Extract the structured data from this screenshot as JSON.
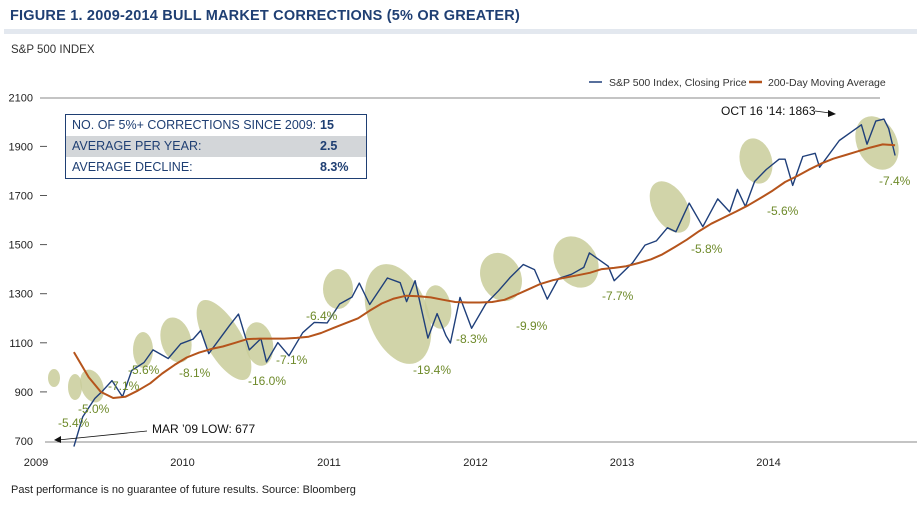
{
  "title": "FIGURE 1. 2009-2014 BULL MARKET CORRECTIONS (5% OR GREATER)",
  "subtitle": "S&P 500 INDEX",
  "footnote": "Past performance is no guarantee of future results. Source: Bloomberg",
  "info_box": [
    {
      "label": "NO. OF 5%+ CORRECTIONS SINCE 2009:",
      "value": "15"
    },
    {
      "label": "AVERAGE PER YEAR:",
      "value": "2.5"
    },
    {
      "label": "AVERAGE DECLINE:",
      "value": "8.3%"
    }
  ],
  "chart_data": {
    "type": "line",
    "title": "FIGURE 1. 2009-2014 BULL MARKET CORRECTIONS (5% OR GREATER)",
    "ylabel": "S&P 500 INDEX",
    "ylim": [
      700,
      2100
    ],
    "yticks": [
      "700",
      "900",
      "1100",
      "1300",
      "1500",
      "1700",
      "1900",
      "2100"
    ],
    "xticks": [
      "2009",
      "2010",
      "2011",
      "2012",
      "2013",
      "2014"
    ],
    "legend_position": "top-right",
    "grid": false,
    "colors": {
      "price": "#1f3f7a",
      "ma": "#b5541c",
      "highlight": "#c9cc9a",
      "correction_label": "#6e8a2a"
    },
    "series": [
      {
        "name": "S&P 500 Index, Closing Price",
        "points": [
          [
            "2009-03-09",
            677
          ],
          [
            "2009-03-31",
            798
          ],
          [
            "2009-04-30",
            873
          ],
          [
            "2009-05-20",
            905
          ],
          [
            "2009-06-12",
            946
          ],
          [
            "2009-07-08",
            880
          ],
          [
            "2009-07-31",
            987
          ],
          [
            "2009-08-31",
            1020
          ],
          [
            "2009-09-22",
            1071
          ],
          [
            "2009-10-30",
            1036
          ],
          [
            "2009-11-30",
            1096
          ],
          [
            "2009-12-31",
            1115
          ],
          [
            "2010-01-19",
            1150
          ],
          [
            "2010-02-08",
            1056
          ],
          [
            "2010-03-31",
            1169
          ],
          [
            "2010-04-23",
            1217
          ],
          [
            "2010-05-20",
            1071
          ],
          [
            "2010-06-18",
            1117
          ],
          [
            "2010-07-02",
            1022
          ],
          [
            "2010-07-30",
            1101
          ],
          [
            "2010-08-27",
            1047
          ],
          [
            "2010-09-30",
            1141
          ],
          [
            "2010-10-29",
            1183
          ],
          [
            "2010-11-30",
            1181
          ],
          [
            "2010-12-31",
            1258
          ],
          [
            "2011-01-31",
            1286
          ],
          [
            "2011-02-18",
            1343
          ],
          [
            "2011-03-16",
            1256
          ],
          [
            "2011-04-29",
            1364
          ],
          [
            "2011-05-31",
            1345
          ],
          [
            "2011-06-16",
            1268
          ],
          [
            "2011-07-07",
            1353
          ],
          [
            "2011-08-08",
            1119
          ],
          [
            "2011-08-31",
            1219
          ],
          [
            "2011-09-22",
            1129
          ],
          [
            "2011-10-03",
            1099
          ],
          [
            "2011-10-27",
            1285
          ],
          [
            "2011-11-25",
            1159
          ],
          [
            "2011-12-30",
            1258
          ],
          [
            "2012-01-31",
            1312
          ],
          [
            "2012-02-29",
            1366
          ],
          [
            "2012-04-02",
            1419
          ],
          [
            "2012-04-30",
            1398
          ],
          [
            "2012-06-01",
            1278
          ],
          [
            "2012-06-29",
            1362
          ],
          [
            "2012-07-31",
            1379
          ],
          [
            "2012-08-31",
            1407
          ],
          [
            "2012-09-14",
            1466
          ],
          [
            "2012-10-31",
            1412
          ],
          [
            "2012-11-15",
            1353
          ],
          [
            "2012-12-31",
            1426
          ],
          [
            "2013-01-31",
            1498
          ],
          [
            "2013-02-28",
            1515
          ],
          [
            "2013-03-28",
            1569
          ],
          [
            "2013-04-18",
            1552
          ],
          [
            "2013-05-21",
            1669
          ],
          [
            "2013-06-24",
            1573
          ],
          [
            "2013-07-31",
            1686
          ],
          [
            "2013-08-30",
            1633
          ],
          [
            "2013-09-18",
            1725
          ],
          [
            "2013-10-08",
            1655
          ],
          [
            "2013-10-31",
            1757
          ],
          [
            "2013-11-29",
            1806
          ],
          [
            "2013-12-31",
            1848
          ],
          [
            "2014-01-15",
            1848
          ],
          [
            "2014-02-03",
            1741
          ],
          [
            "2014-02-28",
            1859
          ],
          [
            "2014-03-31",
            1872
          ],
          [
            "2014-04-11",
            1815
          ],
          [
            "2014-05-30",
            1924
          ],
          [
            "2014-06-30",
            1960
          ],
          [
            "2014-07-24",
            1988
          ],
          [
            "2014-08-07",
            1909
          ],
          [
            "2014-08-29",
            2003
          ],
          [
            "2014-09-18",
            2011
          ],
          [
            "2014-09-30",
            1972
          ],
          [
            "2014-10-16",
            1863
          ]
        ]
      },
      {
        "name": "200-Day Moving Average",
        "points": [
          [
            "2009-03-09",
            1062
          ],
          [
            "2009-04-15",
            960
          ],
          [
            "2009-05-15",
            900
          ],
          [
            "2009-06-15",
            875
          ],
          [
            "2009-07-15",
            880
          ],
          [
            "2009-08-15",
            905
          ],
          [
            "2009-09-15",
            935
          ],
          [
            "2009-10-15",
            975
          ],
          [
            "2009-11-15",
            1010
          ],
          [
            "2009-12-15",
            1040
          ],
          [
            "2010-01-15",
            1060
          ],
          [
            "2010-02-15",
            1075
          ],
          [
            "2010-03-15",
            1085
          ],
          [
            "2010-04-15",
            1100
          ],
          [
            "2010-05-15",
            1115
          ],
          [
            "2010-06-15",
            1117
          ],
          [
            "2010-07-15",
            1117
          ],
          [
            "2010-08-15",
            1117
          ],
          [
            "2010-09-15",
            1120
          ],
          [
            "2010-10-15",
            1125
          ],
          [
            "2010-11-15",
            1140
          ],
          [
            "2010-12-15",
            1160
          ],
          [
            "2011-01-15",
            1180
          ],
          [
            "2011-02-15",
            1200
          ],
          [
            "2011-03-15",
            1230
          ],
          [
            "2011-04-15",
            1260
          ],
          [
            "2011-05-15",
            1280
          ],
          [
            "2011-06-15",
            1292
          ],
          [
            "2011-07-15",
            1290
          ],
          [
            "2011-08-15",
            1285
          ],
          [
            "2011-09-15",
            1275
          ],
          [
            "2011-10-15",
            1266
          ],
          [
            "2011-11-15",
            1264
          ],
          [
            "2011-12-15",
            1264
          ],
          [
            "2012-01-15",
            1266
          ],
          [
            "2012-02-15",
            1275
          ],
          [
            "2012-03-15",
            1295
          ],
          [
            "2012-04-15",
            1318
          ],
          [
            "2012-05-15",
            1340
          ],
          [
            "2012-06-15",
            1355
          ],
          [
            "2012-07-15",
            1365
          ],
          [
            "2012-08-15",
            1375
          ],
          [
            "2012-09-15",
            1385
          ],
          [
            "2012-10-15",
            1400
          ],
          [
            "2012-11-15",
            1405
          ],
          [
            "2012-12-15",
            1412
          ],
          [
            "2013-01-15",
            1425
          ],
          [
            "2013-02-15",
            1440
          ],
          [
            "2013-03-15",
            1460
          ],
          [
            "2013-04-15",
            1490
          ],
          [
            "2013-05-15",
            1520
          ],
          [
            "2013-06-15",
            1555
          ],
          [
            "2013-07-15",
            1585
          ],
          [
            "2013-08-15",
            1610
          ],
          [
            "2013-09-15",
            1635
          ],
          [
            "2013-10-15",
            1660
          ],
          [
            "2013-11-15",
            1690
          ],
          [
            "2013-12-15",
            1720
          ],
          [
            "2014-01-15",
            1755
          ],
          [
            "2014-02-15",
            1780
          ],
          [
            "2014-03-15",
            1805
          ],
          [
            "2014-04-15",
            1830
          ],
          [
            "2014-05-15",
            1850
          ],
          [
            "2014-06-15",
            1865
          ],
          [
            "2014-07-15",
            1880
          ],
          [
            "2014-08-15",
            1895
          ],
          [
            "2014-09-15",
            1908
          ],
          [
            "2014-10-16",
            1905
          ]
        ]
      }
    ],
    "corrections": [
      "-5.4%",
      "-5.0%",
      "-7.1%",
      "-5.6%",
      "-8.1%",
      "-16.0%",
      "-7.1%",
      "-6.4%",
      "-19.4%",
      "-8.3%",
      "-9.9%",
      "-7.7%",
      "-5.8%",
      "-5.6%",
      "-7.4%"
    ],
    "annotations": [
      {
        "text": "MAR ’09 LOW:  677",
        "date": "2009-03-09",
        "value": 677
      },
      {
        "text": "OCT 16 ’14: 1863",
        "date": "2014-10-16",
        "value": 1863
      }
    ]
  }
}
